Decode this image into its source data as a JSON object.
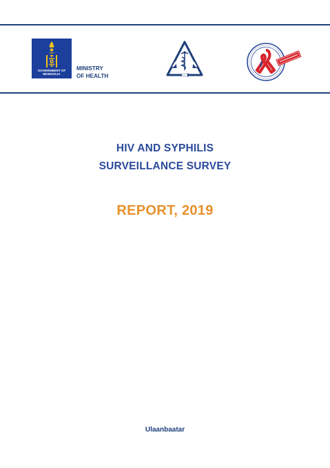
{
  "header": {
    "government_caption_line1": "GOVERNMENT OF",
    "government_caption_line2": "MONGOLIA",
    "ministry_line1": "MINISTRY",
    "ministry_line2": "OF HEALTH"
  },
  "title": {
    "line1": "HIV AND SYPHILIS",
    "line2": "SURVEILLANCE SURVEY",
    "report": "REPORT, 2019"
  },
  "footer": {
    "city": "Ulaanbaatar"
  },
  "colors": {
    "navy": "#1f3f7a",
    "title_blue": "#2b4a9a",
    "orange": "#e8912c",
    "emblem_blue": "#1c3f9c",
    "emblem_gold": "#f2c21b",
    "ribbon_red": "#d7262e"
  },
  "icons": {
    "government": "soyombo-emblem-icon",
    "ncc": "triangle-caduceus-icon",
    "ribbon": "aids-ribbon-seal-icon"
  }
}
